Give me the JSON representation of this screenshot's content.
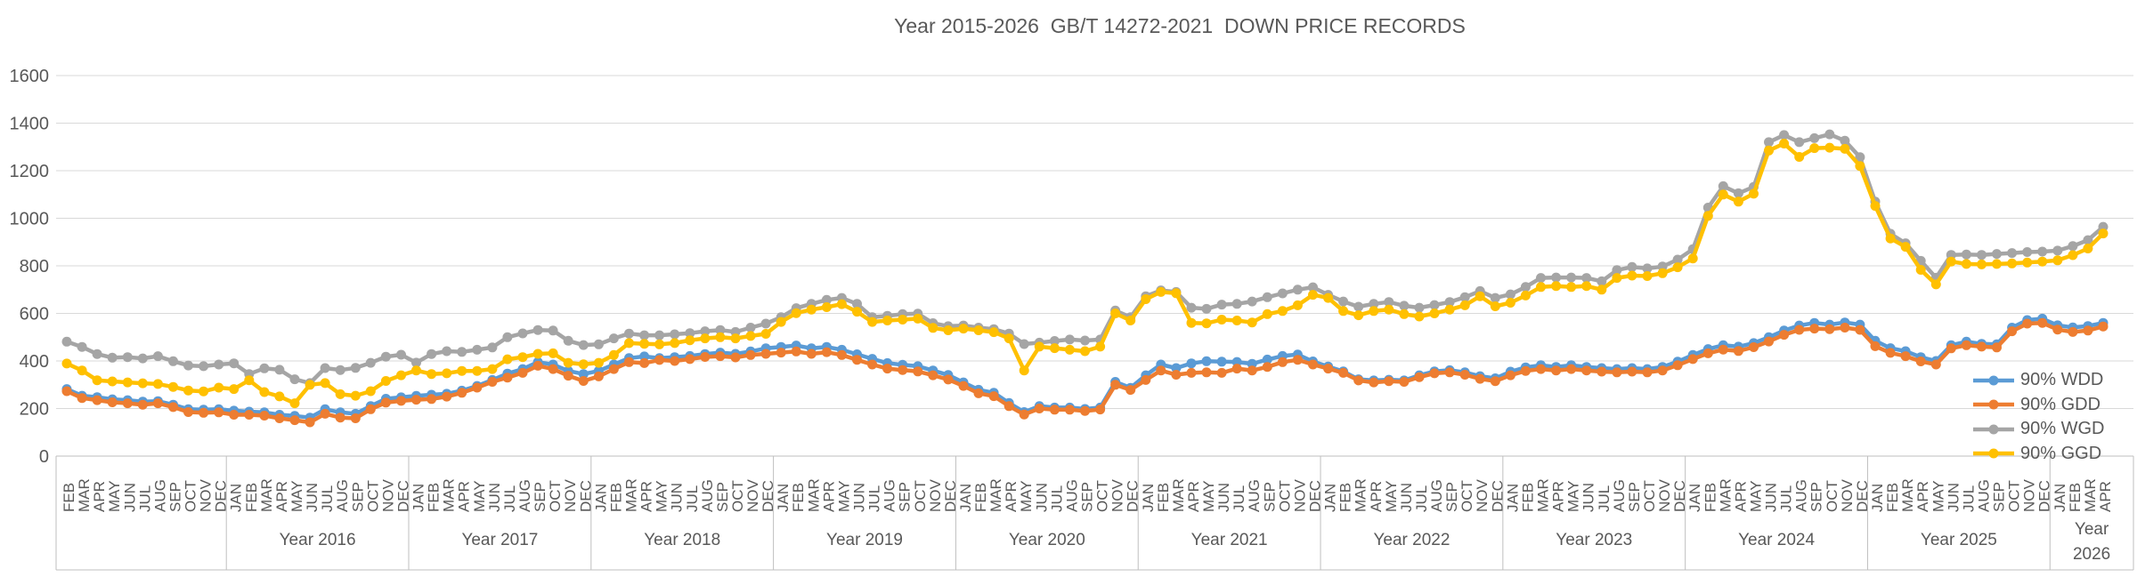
{
  "title": "Year 2015-2026  GB/T 14272-2021  DOWN PRICE RECORDS",
  "colors": {
    "background": "#ffffff",
    "text": "#595959",
    "gridline": "#d9d9d9",
    "axis_line": "#bfbfbf",
    "series_wdd": "#5b9bd5",
    "series_gdd": "#ed7d31",
    "series_wgd": "#a5a5a5",
    "series_ggd": "#ffc000"
  },
  "chart_data": {
    "type": "line",
    "title": "Year 2015-2026  GB/T 14272-2021  DOWN PRICE RECORDS",
    "xlabel": "",
    "ylabel": "",
    "ylim": [
      0,
      1600
    ],
    "grid": true,
    "legend_position": "right-middle",
    "yticks": [
      0,
      200,
      400,
      600,
      800,
      1000,
      1200,
      1400,
      1600
    ],
    "x_labels": [
      "FEB",
      "MAR",
      "APR",
      "MAY",
      "JUN",
      "JUL",
      "AUG",
      "SEP",
      "OCT",
      "NOV",
      "DEC",
      "JAN",
      "FEB",
      "MAR",
      "APR",
      "MAY",
      "JUN",
      "JUL",
      "AUG",
      "SEP",
      "OCT",
      "NOV",
      "DEC",
      "JAN",
      "FEB",
      "MAR",
      "APR",
      "MAY",
      "JUN",
      "JUL",
      "AUG",
      "SEP",
      "OCT",
      "NOV",
      "DEC",
      "JAN",
      "FEB",
      "MAR",
      "APR",
      "MAY",
      "JUN",
      "JUL",
      "AUG",
      "SEP",
      "OCT",
      "NOV",
      "DEC",
      "JAN",
      "FEB",
      "MAR",
      "APR",
      "MAY",
      "JUN",
      "JUL",
      "AUG",
      "SEP",
      "OCT",
      "NOV",
      "DEC",
      "JAN",
      "FEB",
      "MAR",
      "APR",
      "MAY",
      "JUN",
      "JUL",
      "AUG",
      "SEP",
      "OCT",
      "NOV",
      "DEC",
      "JAN",
      "FEB",
      "MAR",
      "APR",
      "MAY",
      "JUN",
      "JUL",
      "AUG",
      "SEP",
      "OCT",
      "NOV",
      "DEC",
      "JAN",
      "FEB",
      "MAR",
      "APR",
      "MAY",
      "JUN",
      "JUL",
      "AUG",
      "SEP",
      "OCT",
      "NOV",
      "DEC",
      "JAN",
      "FEB",
      "MAR",
      "APR",
      "MAY",
      "JUN",
      "JUL",
      "AUG",
      "SEP",
      "OCT",
      "NOV",
      "DEC",
      "JAN",
      "FEB",
      "MAR",
      "APR",
      "MAY",
      "JUN",
      "JUL",
      "AUG",
      "SEP",
      "OCT",
      "NOV",
      "DEC",
      "JAN",
      "FEB",
      "MAR",
      "APR",
      "MAY",
      "JUN",
      "JUL",
      "AUG",
      "SEP",
      "OCT",
      "NOV",
      "DEC",
      "JAN",
      "FEB",
      "MAR",
      "APR"
    ],
    "year_bands": [
      {
        "label": "",
        "months": 11
      },
      {
        "label": "Year 2016",
        "months": 12
      },
      {
        "label": "Year 2017",
        "months": 12
      },
      {
        "label": "Year 2018",
        "months": 12
      },
      {
        "label": "Year 2019",
        "months": 12
      },
      {
        "label": "Year 2020",
        "months": 12
      },
      {
        "label": "Year 2021",
        "months": 12
      },
      {
        "label": "Year 2022",
        "months": 12
      },
      {
        "label": "Year 2023",
        "months": 12
      },
      {
        "label": "Year 2024",
        "months": 12
      },
      {
        "label": "Year 2025",
        "months": 12
      },
      {
        "label": "Year 2026",
        "months": 4
      }
    ],
    "series": [
      {
        "name": "90% WDD",
        "color": "#5b9bd5",
        "values": [
          282,
          254,
          248,
          239,
          235,
          229,
          231,
          216,
          197,
          195,
          197,
          191,
          187,
          184,
          174,
          169,
          162,
          197,
          184,
          178,
          210,
          241,
          247,
          253,
          258,
          262,
          275,
          295,
          320,
          347,
          366,
          395,
          385,
          358,
          345,
          358,
          385,
          412,
          419,
          412,
          416,
          421,
          429,
          435,
          430,
          440,
          453,
          459,
          465,
          453,
          459,
          447,
          428,
          409,
          391,
          384,
          378,
          360,
          341,
          310,
          279,
          266,
          223,
          185,
          210,
          204,
          204,
          198,
          204,
          312,
          287,
          340,
          385,
          370,
          390,
          399,
          397,
          396,
          388,
          406,
          421,
          427,
          398,
          377,
          356,
          323,
          318,
          321,
          318,
          340,
          356,
          361,
          352,
          336,
          327,
          355,
          373,
          382,
          375,
          382,
          375,
          370,
          366,
          370,
          366,
          375,
          397,
          425,
          450,
          466,
          460,
          475,
          500,
          528,
          549,
          560,
          553,
          562,
          553,
          485,
          454,
          441,
          416,
          400,
          466,
          481,
          472,
          470,
          540,
          572,
          578,
          550,
          541,
          547,
          560
        ]
      },
      {
        "name": "90% GDD",
        "color": "#ed7d31",
        "values": [
          273,
          244,
          235,
          226,
          222,
          216,
          222,
          206,
          185,
          182,
          184,
          174,
          174,
          170,
          159,
          151,
          142,
          178,
          162,
          159,
          197,
          225,
          232,
          237,
          240,
          250,
          266,
          288,
          312,
          330,
          350,
          380,
          366,
          338,
          316,
          335,
          366,
          395,
          391,
          404,
          400,
          408,
          417,
          420,
          415,
          425,
          430,
          435,
          440,
          430,
          437,
          425,
          405,
          385,
          368,
          362,
          356,
          340,
          322,
          295,
          264,
          252,
          210,
          175,
          200,
          195,
          195,
          190,
          196,
          300,
          278,
          320,
          360,
          342,
          350,
          352,
          350,
          368,
          360,
          375,
          395,
          405,
          385,
          368,
          350,
          318,
          310,
          315,
          312,
          332,
          348,
          352,
          342,
          325,
          315,
          340,
          358,
          366,
          360,
          366,
          360,
          355,
          352,
          355,
          352,
          360,
          382,
          408,
          432,
          448,
          442,
          458,
          482,
          510,
          531,
          536,
          534,
          540,
          531,
          462,
          434,
          420,
          398,
          385,
          453,
          466,
          460,
          457,
          525,
          557,
          560,
          532,
          522,
          528,
          545
        ]
      },
      {
        "name": "90% WGD",
        "color": "#a5a5a5",
        "values": [
          481,
          459,
          429,
          414,
          416,
          411,
          420,
          399,
          381,
          378,
          385,
          390,
          345,
          369,
          363,
          323,
          307,
          370,
          362,
          371,
          392,
          418,
          426,
          393,
          429,
          441,
          438,
          447,
          457,
          500,
          516,
          530,
          528,
          485,
          467,
          470,
          495,
          515,
          508,
          508,
          512,
          517,
          525,
          530,
          522,
          540,
          557,
          584,
          622,
          640,
          657,
          665,
          640,
          584,
          590,
          597,
          599,
          559,
          546,
          549,
          540,
          534,
          515,
          471,
          477,
          484,
          490,
          486,
          490,
          612,
          584,
          672,
          697,
          690,
          624,
          619,
          637,
          640,
          650,
          668,
          684,
          700,
          710,
          678,
          650,
          628,
          640,
          648,
          632,
          624,
          635,
          648,
          668,
          694,
          665,
          680,
          711,
          749,
          751,
          751,
          749,
          735,
          782,
          795,
          789,
          797,
          826,
          870,
          1045,
          1135,
          1105,
          1132,
          1320,
          1350,
          1320,
          1337,
          1353,
          1326,
          1257,
          1070,
          935,
          895,
          821,
          750,
          846,
          848,
          846,
          850,
          854,
          858,
          860,
          864,
          883,
          908,
          964
        ]
      },
      {
        "name": "90% GGD",
        "color": "#ffc000",
        "values": [
          389,
          360,
          319,
          314,
          310,
          306,
          303,
          291,
          276,
          272,
          288,
          282,
          319,
          269,
          251,
          222,
          300,
          307,
          260,
          254,
          273,
          316,
          340,
          360,
          345,
          348,
          358,
          358,
          366,
          407,
          416,
          430,
          432,
          392,
          386,
          392,
          425,
          475,
          472,
          470,
          475,
          487,
          495,
          500,
          495,
          505,
          514,
          564,
          601,
          616,
          626,
          639,
          607,
          564,
          570,
          574,
          578,
          539,
          529,
          536,
          529,
          521,
          495,
          360,
          460,
          454,
          447,
          441,
          460,
          600,
          570,
          660,
          690,
          685,
          560,
          558,
          574,
          570,
          562,
          597,
          610,
          634,
          678,
          665,
          610,
          592,
          610,
          616,
          597,
          587,
          600,
          616,
          634,
          672,
          630,
          645,
          675,
          711,
          715,
          711,
          715,
          700,
          749,
          759,
          757,
          769,
          794,
          831,
          1010,
          1100,
          1070,
          1103,
          1285,
          1314,
          1258,
          1295,
          1297,
          1292,
          1220,
          1052,
          915,
          880,
          783,
          722,
          818,
          808,
          806,
          808,
          810,
          814,
          818,
          823,
          845,
          873,
          936
        ]
      }
    ]
  }
}
